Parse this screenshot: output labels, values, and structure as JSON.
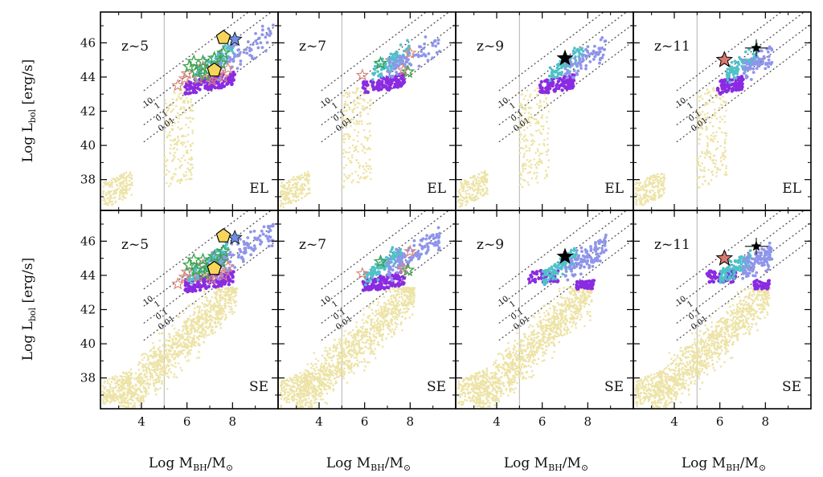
{
  "chart_data": {
    "type": "scatter",
    "layout": "2x4 grid of panels, shared axes",
    "xlim": [
      2.2,
      10.0
    ],
    "ylim": [
      36.2,
      47.8
    ],
    "xticks": [
      4,
      6,
      8
    ],
    "yticks": [
      38,
      40,
      42,
      44,
      46
    ],
    "x_label": {
      "main": "Log M",
      "sub": "BH",
      "tail": "/M",
      "sym": "⊙"
    },
    "y_label": {
      "main": "Log L",
      "sub": "bol",
      "tail": " [erg/s]"
    },
    "vertical_line_x": 5,
    "eddington_ratio_lines": [
      {
        "ratio": 10,
        "label": "10"
      },
      {
        "ratio": 1,
        "label": "1"
      },
      {
        "ratio": 0.1,
        "label": "0.1"
      },
      {
        "ratio": 0.01,
        "label": "0.01"
      }
    ],
    "eddington_constant": 38.1,
    "rows": [
      {
        "label": "EL"
      },
      {
        "label": "SE"
      }
    ],
    "columns": [
      {
        "redshift": "z~5"
      },
      {
        "redshift": "z~7"
      },
      {
        "redshift": "z~9"
      },
      {
        "redshift": "z~11"
      }
    ],
    "colors": {
      "light_seeds": "#ede3a6",
      "heavy_active": "#8a2be2",
      "bright_active": "#4fc1c9",
      "blue_points": "#8f95ea",
      "green_star": "#3fa34d",
      "red_star": "#d9877f",
      "blue_star": "#6f8fe0",
      "yellow_pentagon": "#f6d55a",
      "black_star": "#000000",
      "red_filled_star": "#d9786f"
    },
    "series": [
      {
        "name": "light seed BHs",
        "color_key": "light_seeds",
        "shape": "dot"
      },
      {
        "name": "active heavy seeds",
        "color_key": "heavy_active",
        "shape": "dot"
      },
      {
        "name": "bright accreting BHs",
        "color_key": "bright_active",
        "shape": "dot"
      },
      {
        "name": "most massive BHs",
        "color_key": "blue_points",
        "shape": "dot"
      }
    ],
    "observed": {
      "z~5": {
        "green_stars": [
          [
            6.1,
            44.6
          ],
          [
            6.4,
            44.3
          ],
          [
            6.7,
            44.9
          ],
          [
            6.9,
            44.4
          ],
          [
            7.2,
            45.1
          ],
          [
            7.5,
            44.8
          ],
          [
            6.3,
            44.9
          ],
          [
            6.8,
            44.1
          ],
          [
            7.6,
            45.4
          ]
        ],
        "red_stars": [
          [
            5.6,
            43.5
          ],
          [
            6.0,
            44.2
          ],
          [
            6.5,
            43.9
          ],
          [
            7.0,
            44.0
          ],
          [
            7.4,
            44.3
          ],
          [
            7.8,
            44.5
          ],
          [
            6.7,
            44.6
          ],
          [
            7.1,
            43.8
          ],
          [
            5.9,
            43.9
          ],
          [
            7.6,
            44.0
          ]
        ],
        "blue_stars": [
          [
            8.1,
            46.2
          ]
        ],
        "yellow_pentagons": [
          [
            7.6,
            46.3
          ],
          [
            7.2,
            44.4
          ]
        ]
      },
      "z~7": {
        "green_stars": [
          [
            6.7,
            44.8
          ],
          [
            7.9,
            44.3
          ]
        ],
        "red_stars": [
          [
            5.9,
            44.1
          ],
          [
            8.0,
            45.4
          ],
          [
            7.7,
            44.4
          ]
        ],
        "blue_stars": [],
        "yellow_pentagons": []
      },
      "z~9": {
        "black_star": [
          7.0,
          45.1
        ]
      },
      "z~11": {
        "red_filled_star": [
          6.2,
          45.0
        ],
        "black_star_errorbar": {
          "x": 7.6,
          "y": 45.7,
          "xerr": 0.5,
          "yerr": 0.5
        }
      }
    }
  }
}
